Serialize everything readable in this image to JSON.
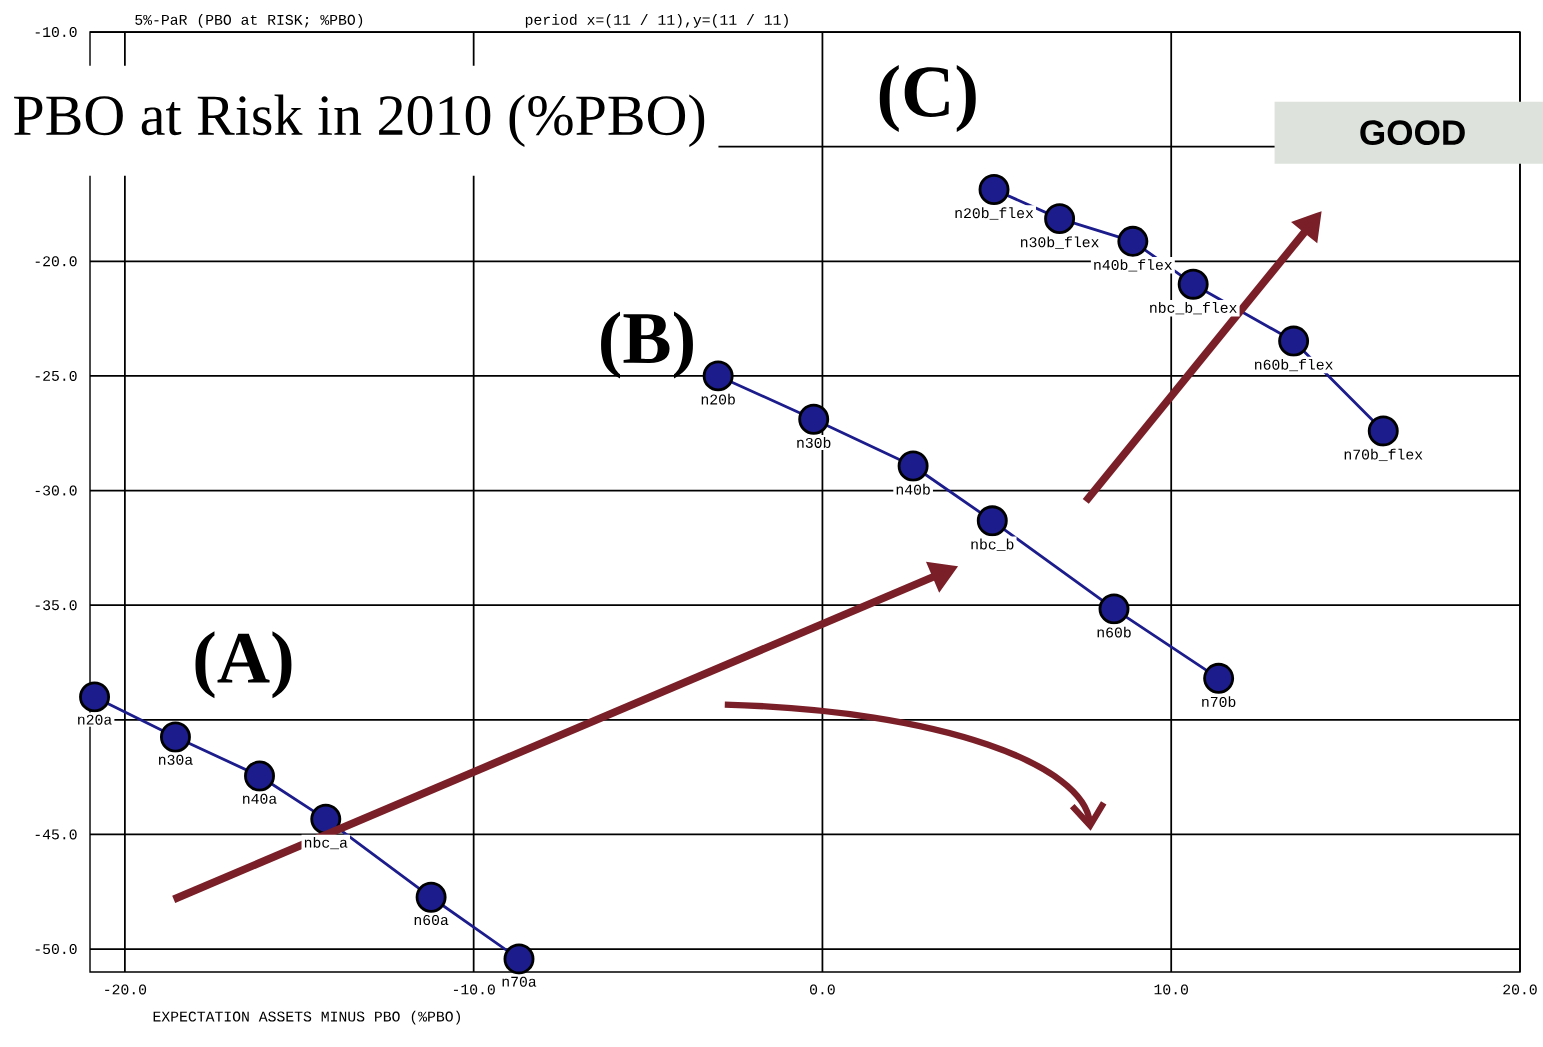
{
  "chart_data": {
    "type": "line",
    "title": "PBO at Risk in 2010 (%PBO)",
    "subtitle": "5%-PaR (PBO at RISK; %PBO)",
    "xlabel": "EXPECTATION ASSETS MINUS PBO (%PBO)",
    "series": [
      {
        "color": "#1c1c8c",
        "x": [
          -20.87,
          -18.55,
          -16.14,
          -14.24,
          -11.22,
          -8.7
        ],
        "values": [
          -39.0,
          -40.75,
          -42.45,
          -44.33,
          -47.74,
          -50.43
        ]
      },
      {
        "color": "#1c1c8c",
        "x": [
          -2.99,
          -0.25,
          2.6,
          4.87,
          8.36,
          11.36
        ],
        "values": [
          -25.0,
          -26.89,
          -28.93,
          -31.32,
          -35.16,
          -38.19
        ]
      },
      {
        "color": "#1c1c8c",
        "x": [
          4.92,
          6.8,
          8.9,
          10.63,
          13.51,
          16.08
        ],
        "values": [
          -16.87,
          -18.14,
          -19.13,
          -21.0,
          -23.48,
          -27.4
        ]
      }
    ],
    "xlim": [
      -21,
      20
    ],
    "ylim": [
      -51,
      -10
    ],
    "xticks": [
      {
        "value": -20,
        "label": "-20.0"
      },
      {
        "value": -10,
        "label": "-10.0"
      },
      {
        "value": 0,
        "label": "0.0"
      },
      {
        "value": 10,
        "label": "10.0"
      },
      {
        "value": 20,
        "label": "20.0"
      }
    ],
    "yticks": [
      {
        "value": -50,
        "label": "-50.0"
      },
      {
        "value": -45,
        "label": "-45.0"
      },
      {
        "value": -40,
        "label": null
      },
      {
        "value": -35,
        "label": "-35.0"
      },
      {
        "value": -30,
        "label": "-30.0"
      },
      {
        "value": -25,
        "label": "-25.0"
      },
      {
        "value": -20,
        "label": "-20.0"
      },
      {
        "value": -15,
        "label": null
      },
      {
        "value": -10,
        "label": "-10.0"
      }
    ],
    "grid": true,
    "marker": "circle",
    "line_style": "solid",
    "annotations": [
      "(A)",
      "(B)",
      "(C)",
      "GOOD",
      "period x=(11 / 11),y=(11 / 11)",
      {
        "text": "n20a",
        "x": -20.87,
        "y": -39.0
      },
      {
        "text": "n30a",
        "x": -18.55,
        "y": -40.75
      },
      {
        "text": "n40a",
        "x": -16.14,
        "y": -42.45
      },
      {
        "text": "nbc_a",
        "x": -14.24,
        "y": -44.33
      },
      {
        "text": "n60a",
        "x": -11.22,
        "y": -47.74
      },
      {
        "text": "n70a",
        "x": -8.7,
        "y": -50.43
      },
      {
        "text": "n20b",
        "x": -2.99,
        "y": -25.0
      },
      {
        "text": "n30b",
        "x": -0.25,
        "y": -26.89
      },
      {
        "text": "n40b",
        "x": 2.6,
        "y": -28.93
      },
      {
        "text": "nbc_b",
        "x": 4.87,
        "y": -31.32
      },
      {
        "text": "n60b",
        "x": 8.36,
        "y": -35.16
      },
      {
        "text": "n70b",
        "x": 11.36,
        "y": -38.19
      },
      {
        "text": "n20b_flex",
        "x": 4.92,
        "y": -16.87
      },
      {
        "text": "n30b_flex",
        "x": 6.8,
        "y": -18.14
      },
      {
        "text": "n40b_flex",
        "x": 8.9,
        "y": -19.13
      },
      {
        "text": "nbc_b_flex",
        "x": 10.63,
        "y": -21.0
      },
      {
        "text": "n60b_flex",
        "x": 13.51,
        "y": -23.48
      },
      {
        "text": "n70b_flex",
        "x": 16.08,
        "y": -27.4
      }
    ]
  }
}
